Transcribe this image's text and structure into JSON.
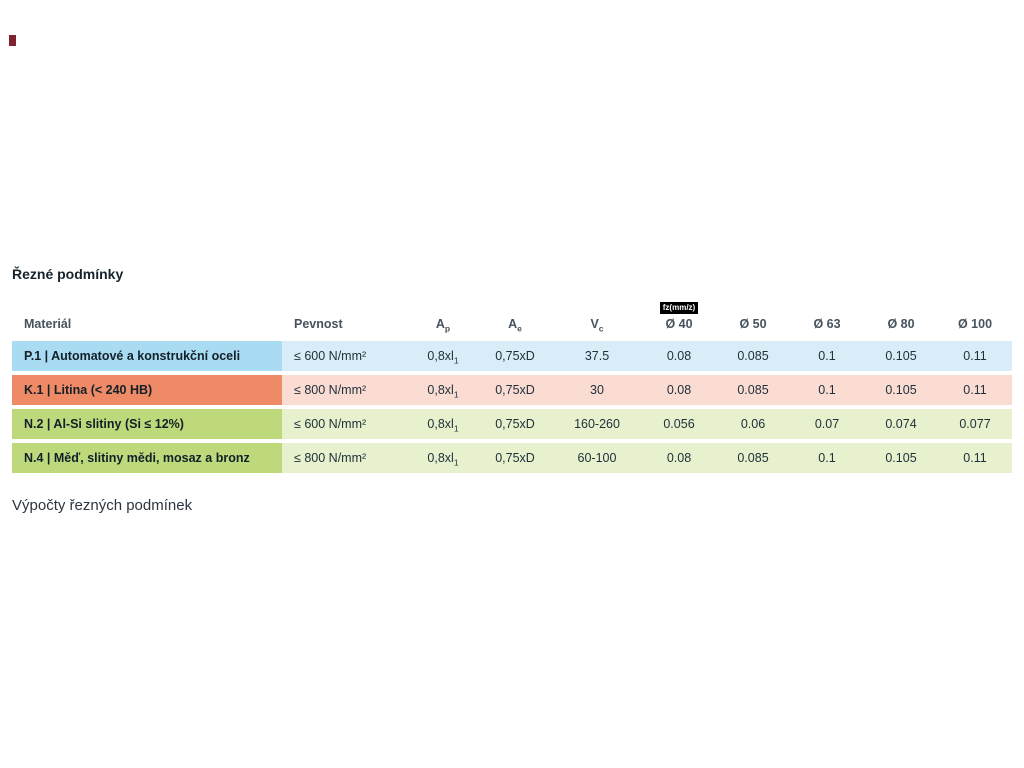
{
  "page": {
    "title": "Řezné podmínky",
    "footer_text": "Výpočty řezných podmínek"
  },
  "table": {
    "headers": {
      "material": "Materiál",
      "pevnost": "Pevnost",
      "ap": {
        "base": "A",
        "sub": "p"
      },
      "ae": {
        "base": "A",
        "sub": "e"
      },
      "vc": {
        "base": "V",
        "sub": "c"
      },
      "fz_badge": "fz(mm/z)",
      "d40": "Ø 40",
      "d50": "Ø 50",
      "d63": "Ø 63",
      "d80": "Ø 80",
      "d100": "Ø 100"
    },
    "rows": [
      {
        "theme": "blue",
        "material": "P.1 | Automatové a konstrukční oceli",
        "pevnost": "≤ 600 N/mm²",
        "ap": "0,8xl",
        "ap_sub": "1",
        "ae": "0,75xD",
        "vc": "37.5",
        "d40": "0.08",
        "d50": "0.085",
        "d63": "0.1",
        "d80": "0.105",
        "d100": "0.11"
      },
      {
        "theme": "red",
        "material": "K.1 | Litina (< 240 HB)",
        "pevnost": "≤ 800 N/mm²",
        "ap": "0,8xl",
        "ap_sub": "1",
        "ae": "0,75xD",
        "vc": "30",
        "d40": "0.08",
        "d50": "0.085",
        "d63": "0.1",
        "d80": "0.105",
        "d100": "0.11"
      },
      {
        "theme": "green",
        "material": "N.2 | Al-Si slitiny (Si ≤ 12%)",
        "pevnost": "≤ 600 N/mm²",
        "ap": "0,8xl",
        "ap_sub": "1",
        "ae": "0,75xD",
        "vc": "160-260",
        "d40": "0.056",
        "d50": "0.06",
        "d63": "0.07",
        "d80": "0.074",
        "d100": "0.077"
      },
      {
        "theme": "green",
        "material": "N.4 | Měď, slitiny mědi, mosaz a bronz",
        "pevnost": "≤ 800 N/mm²",
        "ap": "0,8xl",
        "ap_sub": "1",
        "ae": "0,75xD",
        "vc": "60-100",
        "d40": "0.08",
        "d50": "0.085",
        "d63": "0.1",
        "d80": "0.105",
        "d100": "0.11"
      }
    ]
  },
  "colors": {
    "row_blue_label": "#a9dbf2",
    "row_blue_body": "#d8edf8",
    "row_red_label": "#ef8a67",
    "row_red_body": "#fadcd3",
    "row_green_label": "#bdd97b",
    "row_green_body": "#e7f1cd",
    "badge_bg": "#000000",
    "badge_text": "#ffffff",
    "header_text": "#46535e",
    "body_text": "#21313b"
  }
}
